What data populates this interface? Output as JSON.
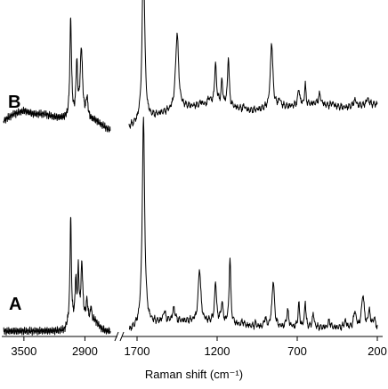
{
  "chart_data": {
    "type": "line",
    "xlabel": "Raman shift (cm⁻¹)",
    "x_reversed": true,
    "axis_break": true,
    "segments": [
      {
        "name": "high",
        "xlim": [
          3700,
          2650
        ],
        "ticks": [
          3500,
          2900
        ],
        "tick_labels": [
          "3500",
          "2900"
        ]
      },
      {
        "name": "low",
        "xlim": [
          1750,
          200
        ],
        "ticks": [
          1700,
          1200,
          700,
          200
        ],
        "tick_labels": [
          "1700",
          "1200",
          "700",
          "200"
        ]
      }
    ],
    "ylim": [
      0,
      1
    ],
    "spectra": [
      {
        "label": "B",
        "offset": 0.6,
        "high": {
          "baseline": [
            [
              3700,
              0.03
            ],
            [
              3600,
              0.05
            ],
            [
              3500,
              0.06
            ],
            [
              3400,
              0.05
            ],
            [
              3300,
              0.05
            ],
            [
              3200,
              0.04
            ],
            [
              3100,
              0.035
            ],
            [
              3060,
              0.03
            ],
            [
              2800,
              0.03
            ],
            [
              2700,
              0.01
            ],
            [
              2650,
              0.0
            ]
          ],
          "peaks": [
            [
              3040,
              0.3,
              10
            ],
            [
              2980,
              0.16,
              10
            ],
            [
              2935,
              0.21,
              14
            ],
            [
              2880,
              0.06,
              12
            ]
          ]
        },
        "low": {
          "baseline": [
            [
              1750,
              0.01
            ],
            [
              1700,
              0.02
            ],
            [
              1550,
              0.05
            ],
            [
              1400,
              0.07
            ],
            [
              1200,
              0.08
            ],
            [
              1000,
              0.06
            ],
            [
              800,
              0.07
            ],
            [
              600,
              0.08
            ],
            [
              400,
              0.07
            ],
            [
              200,
              0.08
            ]
          ],
          "peaks": [
            [
              1660,
              0.52,
              9
            ],
            [
              1450,
              0.23,
              11
            ],
            [
              1300,
              0.01,
              8
            ],
            [
              1250,
              0.02,
              8
            ],
            [
              1210,
              0.12,
              7
            ],
            [
              1170,
              0.07,
              6
            ],
            [
              1130,
              0.15,
              6
            ],
            [
              1030,
              0.01,
              8
            ],
            [
              860,
              0.2,
              9
            ],
            [
              810,
              0.02,
              10
            ],
            [
              690,
              0.05,
              7
            ],
            [
              650,
              0.06,
              5
            ],
            [
              560,
              0.03,
              10
            ],
            [
              480,
              0.01,
              8
            ],
            [
              340,
              0.02,
              10
            ],
            [
              260,
              0.02,
              10
            ]
          ]
        }
      },
      {
        "label": "A",
        "offset": 0.0,
        "high": {
          "baseline": [
            [
              3700,
              0.0
            ],
            [
              3100,
              0.0
            ],
            [
              3060,
              0.02
            ],
            [
              2800,
              0.03
            ],
            [
              2750,
              0.01
            ],
            [
              2700,
              0.0
            ],
            [
              2650,
              0.0
            ]
          ],
          "peaks": [
            [
              3040,
              0.32,
              8
            ],
            [
              2990,
              0.12,
              8
            ],
            [
              2965,
              0.15,
              8
            ],
            [
              2930,
              0.17,
              11
            ],
            [
              2880,
              0.06,
              10
            ],
            [
              2840,
              0.04,
              8
            ]
          ]
        },
        "low": {
          "baseline": [
            [
              1750,
              0.0
            ],
            [
              1700,
              0.01
            ],
            [
              1650,
              0.02
            ],
            [
              1500,
              0.03
            ],
            [
              1400,
              0.03
            ],
            [
              1300,
              0.03
            ],
            [
              1100,
              0.02
            ],
            [
              900,
              0.01
            ],
            [
              700,
              0.01
            ],
            [
              500,
              0.01
            ],
            [
              300,
              0.01
            ],
            [
              200,
              0.01
            ]
          ],
          "peaks": [
            [
              1660,
              0.62,
              9
            ],
            [
              1530,
              0.03,
              8
            ],
            [
              1470,
              0.04,
              8
            ],
            [
              1310,
              0.16,
              9
            ],
            [
              1210,
              0.12,
              7
            ],
            [
              1170,
              0.06,
              7
            ],
            [
              1120,
              0.2,
              6
            ],
            [
              1040,
              0.01,
              8
            ],
            [
              960,
              0.01,
              6
            ],
            [
              900,
              0.03,
              6
            ],
            [
              850,
              0.14,
              9
            ],
            [
              760,
              0.05,
              8
            ],
            [
              690,
              0.07,
              6
            ],
            [
              650,
              0.08,
              5
            ],
            [
              600,
              0.04,
              7
            ],
            [
              500,
              0.02,
              8
            ],
            [
              400,
              0.02,
              8
            ],
            [
              340,
              0.05,
              8
            ],
            [
              290,
              0.1,
              9
            ],
            [
              250,
              0.05,
              8
            ],
            [
              220,
              0.03,
              6
            ]
          ]
        }
      }
    ]
  }
}
